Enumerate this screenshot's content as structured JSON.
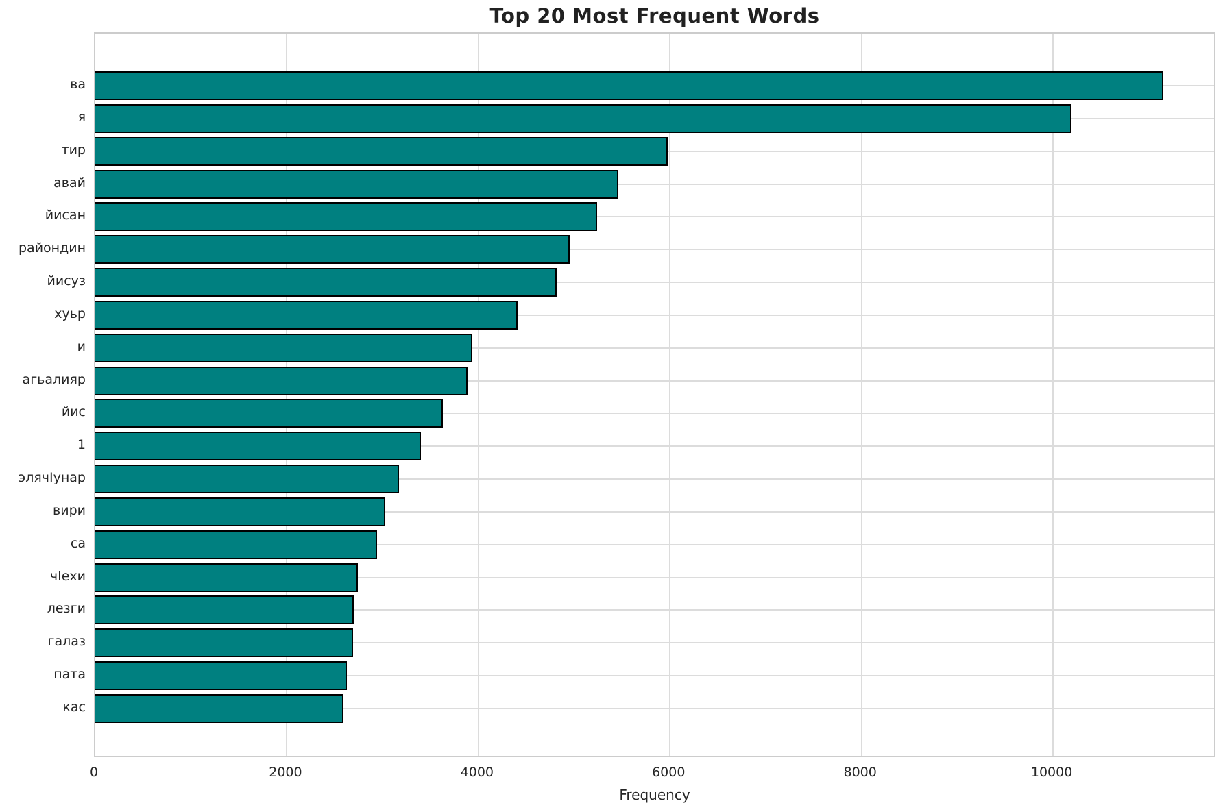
{
  "chart_data": {
    "type": "bar",
    "orientation": "horizontal",
    "title": "Top 20 Most Frequent Words",
    "xlabel": "Frequency",
    "ylabel": "",
    "categories": [
      "ва",
      "я",
      "тир",
      "авай",
      "йисан",
      "райондин",
      "йисуз",
      "хуьр",
      "и",
      "агьалияр",
      "йис",
      "1",
      "элячӀунар",
      "вири",
      "са",
      "чӀехи",
      "лезги",
      "галаз",
      "пата",
      "кас"
    ],
    "values": [
      11150,
      10190,
      5980,
      5460,
      5240,
      4950,
      4820,
      4410,
      3940,
      3890,
      3630,
      3400,
      3170,
      3030,
      2940,
      2740,
      2700,
      2690,
      2630,
      2590
    ],
    "xticks": [
      0,
      2000,
      4000,
      6000,
      8000,
      10000
    ],
    "xlim": [
      0,
      11710
    ],
    "grid": true,
    "legend": "none",
    "bar_color": "#008080",
    "bar_edge_color": "#000000",
    "grid_color": "#dcdcdc"
  }
}
